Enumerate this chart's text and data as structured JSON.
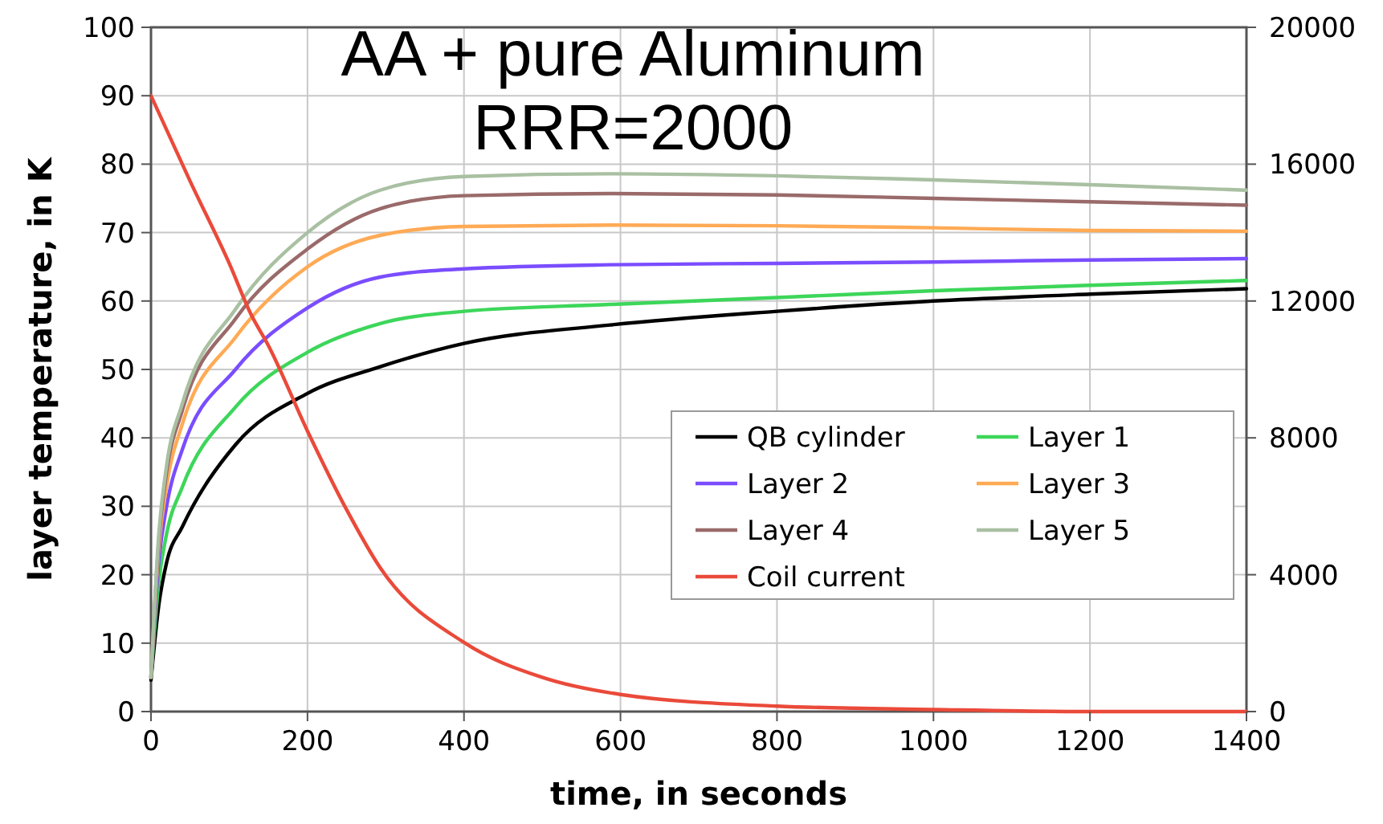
{
  "chart_data": {
    "type": "line",
    "title": "AA + pure Aluminum\nRRR=2000",
    "xlabel": "time, in seconds",
    "ylabel": "layer temperature, in K",
    "x": [
      0,
      10,
      20,
      40,
      108,
      200,
      293,
      400,
      587,
      800,
      1000,
      1200,
      1400
    ],
    "xlim": [
      0,
      1400
    ],
    "xticks": [
      0,
      200,
      400,
      600,
      800,
      1000,
      1200,
      1400
    ],
    "ylim": [
      0,
      100
    ],
    "yticks": [
      0,
      10,
      20,
      30,
      40,
      50,
      60,
      70,
      80,
      90,
      100
    ],
    "y2lim": [
      0,
      20000
    ],
    "y2ticks": [
      0,
      4000,
      8000,
      12000,
      16000,
      20000
    ],
    "grid": true,
    "legend": "right",
    "marker": "none",
    "line_style": "solid",
    "series": [
      {
        "name": "QB cylinder",
        "color": "#000000",
        "values": [
          4.6,
          15.6,
          21.8,
          27,
          39,
          46.5,
          50.4,
          53.8,
          56.5,
          58.5,
          60,
          61,
          61.8
        ]
      },
      {
        "name": "Layer 1",
        "color": "#3dd65a",
        "values": [
          5,
          19,
          26,
          32.8,
          44.5,
          52.5,
          56.7,
          58.5,
          59.5,
          60.5,
          61.5,
          62.3,
          63
        ]
      },
      {
        "name": "Layer 2",
        "color": "#7a4dff",
        "values": [
          5,
          22,
          30,
          38.3,
          50,
          59,
          63.5,
          64.7,
          65.3,
          65.5,
          65.7,
          66,
          66.2
        ]
      },
      {
        "name": "Layer 3",
        "color": "#ffaa55",
        "values": [
          5,
          24,
          33,
          42,
          54.7,
          65,
          69.6,
          70.9,
          71.1,
          71,
          70.7,
          70.3,
          70.2
        ]
      },
      {
        "name": "Layer 4",
        "color": "#9a6a6a",
        "values": [
          5,
          25,
          35,
          44,
          57.4,
          67.6,
          73.5,
          75.4,
          75.7,
          75.5,
          75,
          74.5,
          74
        ]
      },
      {
        "name": "Layer 5",
        "color": "#a9c0a2",
        "values": [
          5,
          26,
          36,
          45,
          58.8,
          70,
          76.2,
          78.2,
          78.6,
          78.3,
          77.7,
          77,
          76.2
        ]
      },
      {
        "name": "Coil current",
        "color": "#ea4a3a",
        "axis": "y2",
        "x": [
          0,
          50,
          100,
          128,
          150,
          200,
          250,
          293,
          400,
          500,
          600,
          800,
          1000,
          1200,
          1400
        ],
        "values": [
          18000,
          15500,
          13100,
          11600,
          10700,
          8200,
          5900,
          4200,
          2020,
          1000,
          500,
          160,
          60,
          0,
          0
        ]
      }
    ]
  }
}
